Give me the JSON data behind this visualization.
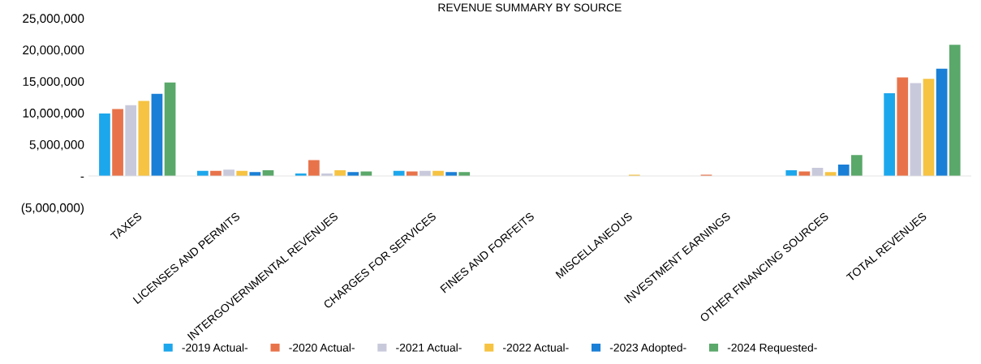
{
  "chart_data": {
    "type": "bar",
    "title": "REVENUE SUMMARY BY SOURCE",
    "categories": [
      "TAXES",
      "LICENSES AND PERMITS",
      "INTERGOVERNMENTAL REVENUES",
      "CHARGES FOR SERVICES",
      "FINES AND FORFEITS",
      "MISCELLANEOUS",
      "INVESTMENT EARNINGS",
      "OTHER FINANCING SOURCES",
      "TOTAL REVENUES"
    ],
    "series": [
      {
        "name": "-2019 Actual-",
        "color": "#1ca7ec",
        "values": [
          9900000,
          800000,
          400000,
          800000,
          0,
          0,
          0,
          900000,
          13100000
        ]
      },
      {
        "name": "-2020 Actual-",
        "color": "#e8734a",
        "values": [
          10600000,
          800000,
          2500000,
          700000,
          0,
          0,
          200000,
          700000,
          15600000
        ]
      },
      {
        "name": "-2021 Actual-",
        "color": "#c9c9dc",
        "values": [
          11200000,
          1000000,
          400000,
          800000,
          0,
          0,
          0,
          1300000,
          14700000
        ]
      },
      {
        "name": "-2022 Actual-",
        "color": "#f6c342",
        "values": [
          11900000,
          800000,
          900000,
          800000,
          0,
          200000,
          0,
          600000,
          15400000
        ]
      },
      {
        "name": "-2023 Adopted-",
        "color": "#1a7fd6",
        "values": [
          13000000,
          600000,
          600000,
          600000,
          0,
          0,
          0,
          1800000,
          17000000
        ]
      },
      {
        "name": "-2024 Requested-",
        "color": "#5aa86a",
        "values": [
          14800000,
          900000,
          700000,
          600000,
          0,
          0,
          0,
          3300000,
          20800000
        ]
      }
    ],
    "ylim": [
      -5000000,
      25000000
    ],
    "yticks": [
      {
        "value": -5000000,
        "label": "(5,000,000)"
      },
      {
        "value": 0,
        "label": "-"
      },
      {
        "value": 5000000,
        "label": "5,000,000"
      },
      {
        "value": 10000000,
        "label": "10,000,000"
      },
      {
        "value": 15000000,
        "label": "15,000,000"
      },
      {
        "value": 20000000,
        "label": "20,000,000"
      },
      {
        "value": 25000000,
        "label": "25,000,000"
      }
    ],
    "legend": "bottom"
  }
}
